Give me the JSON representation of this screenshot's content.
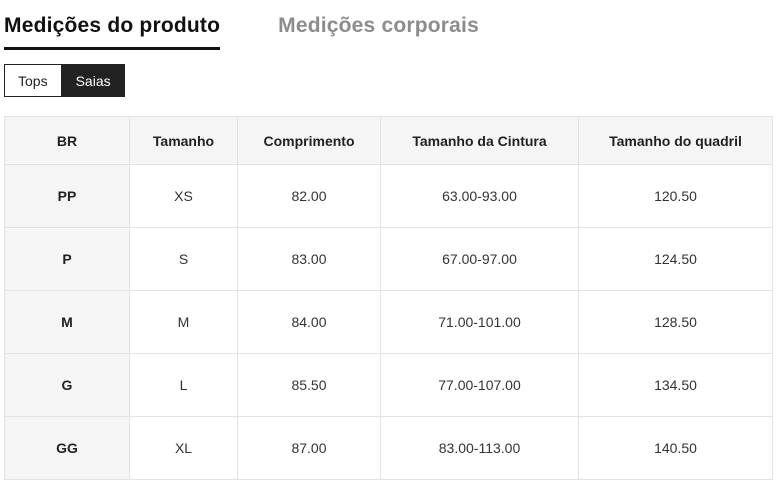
{
  "tabs": {
    "product": {
      "label": "Medições do produto",
      "active": true
    },
    "body": {
      "label": "Medições corporais",
      "active": false
    }
  },
  "toggle": {
    "tops": {
      "label": "Tops",
      "active": false
    },
    "saias": {
      "label": "Saias",
      "active": true
    }
  },
  "table": {
    "columns": [
      "BR",
      "Tamanho",
      "Comprimento",
      "Tamanho da Cintura",
      "Tamanho do quadril"
    ],
    "rows": [
      [
        "PP",
        "XS",
        "82.00",
        "63.00-93.00",
        "120.50"
      ],
      [
        "P",
        "S",
        "83.00",
        "67.00-97.00",
        "124.50"
      ],
      [
        "M",
        "M",
        "84.00",
        "71.00-101.00",
        "128.50"
      ],
      [
        "G",
        "L",
        "85.50",
        "77.00-107.00",
        "134.50"
      ],
      [
        "GG",
        "XL",
        "87.00",
        "83.00-113.00",
        "140.50"
      ]
    ]
  },
  "colors": {
    "active_tab_text": "#111111",
    "inactive_tab_text": "#8c8c8c",
    "toggle_active_bg": "#222222",
    "toggle_active_text": "#ffffff",
    "table_header_bg": "#f5f5f5",
    "table_border": "#e3e3e3",
    "cell_text": "#333333"
  }
}
